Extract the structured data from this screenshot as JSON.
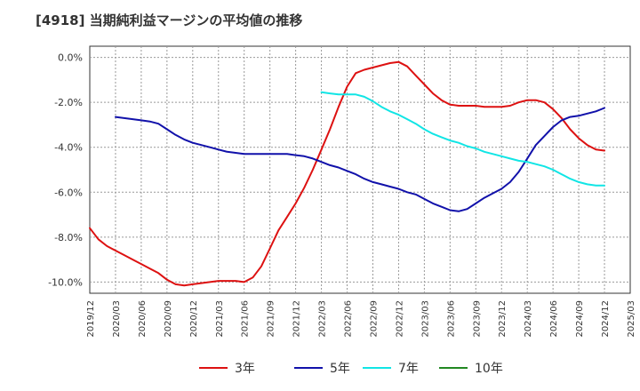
{
  "chart_data": {
    "type": "line",
    "title": "[4918]  当期純利益マージンの平均値の推移",
    "ylim": [
      -10.5,
      0.5
    ],
    "yticks": [
      0,
      -2,
      -4,
      -6,
      -8,
      -10
    ],
    "ytick_labels": [
      "0.0%",
      "-2.0%",
      "-4.0%",
      "-6.0%",
      "-8.0%",
      "-10.0%"
    ],
    "xlim": [
      "2019/12",
      "2025/03"
    ],
    "xtick_labels": [
      "2019/12",
      "2020/03",
      "2020/06",
      "2020/09",
      "2020/12",
      "2021/03",
      "2021/06",
      "2021/09",
      "2021/12",
      "2022/03",
      "2022/06",
      "2022/09",
      "2022/12",
      "2023/03",
      "2023/06",
      "2023/09",
      "2023/12",
      "2024/03",
      "2024/06",
      "2024/09",
      "2024/12",
      "2025/03"
    ],
    "grid": true,
    "legend_position": "bottom",
    "series": [
      {
        "name": "3年",
        "color": "#dd1111",
        "x": [
          "2019/12",
          "2020/01",
          "2020/02",
          "2020/03",
          "2020/04",
          "2020/05",
          "2020/06",
          "2020/07",
          "2020/08",
          "2020/09",
          "2020/10",
          "2020/11",
          "2020/12",
          "2021/01",
          "2021/02",
          "2021/03",
          "2021/04",
          "2021/05",
          "2021/06",
          "2021/07",
          "2021/08",
          "2021/09",
          "2021/10",
          "2021/11",
          "2021/12",
          "2022/01",
          "2022/02",
          "2022/03",
          "2022/04",
          "2022/05",
          "2022/06",
          "2022/07",
          "2022/08",
          "2022/09",
          "2022/10",
          "2022/11",
          "2022/12",
          "2023/01",
          "2023/02",
          "2023/03",
          "2023/04",
          "2023/05",
          "2023/06",
          "2023/07",
          "2023/08",
          "2023/09",
          "2023/10",
          "2023/11",
          "2023/12",
          "2024/01",
          "2024/02",
          "2024/03",
          "2024/04",
          "2024/05",
          "2024/06",
          "2024/07",
          "2024/08",
          "2024/09",
          "2024/10",
          "2024/11",
          "2024/12"
        ],
        "values": [
          -7.6,
          -8.1,
          -8.4,
          -8.6,
          -8.8,
          -9.0,
          -9.2,
          -9.4,
          -9.6,
          -9.9,
          -10.1,
          -10.15,
          -10.1,
          -10.05,
          -10.0,
          -9.95,
          -9.95,
          -9.95,
          -10.0,
          -9.8,
          -9.3,
          -8.5,
          -7.7,
          -7.1,
          -6.5,
          -5.8,
          -5.0,
          -4.1,
          -3.2,
          -2.2,
          -1.3,
          -0.7,
          -0.55,
          -0.45,
          -0.35,
          -0.25,
          -0.2,
          -0.4,
          -0.8,
          -1.2,
          -1.6,
          -1.9,
          -2.1,
          -2.15,
          -2.15,
          -2.15,
          -2.2,
          -2.2,
          -2.2,
          -2.15,
          -2.0,
          -1.9,
          -1.9,
          -2.0,
          -2.3,
          -2.7,
          -3.2,
          -3.6,
          -3.9,
          -4.1,
          -4.15
        ]
      },
      {
        "name": "5年",
        "color": "#1111aa",
        "x": [
          "2020/03",
          "2020/04",
          "2020/05",
          "2020/06",
          "2020/07",
          "2020/08",
          "2020/09",
          "2020/10",
          "2020/11",
          "2020/12",
          "2021/01",
          "2021/02",
          "2021/03",
          "2021/04",
          "2021/05",
          "2021/06",
          "2021/07",
          "2021/08",
          "2021/09",
          "2021/10",
          "2021/11",
          "2021/12",
          "2022/01",
          "2022/02",
          "2022/03",
          "2022/04",
          "2022/05",
          "2022/06",
          "2022/07",
          "2022/08",
          "2022/09",
          "2022/10",
          "2022/11",
          "2022/12",
          "2023/01",
          "2023/02",
          "2023/03",
          "2023/04",
          "2023/05",
          "2023/06",
          "2023/07",
          "2023/08",
          "2023/09",
          "2023/10",
          "2023/11",
          "2023/12",
          "2024/01",
          "2024/02",
          "2024/03",
          "2024/04",
          "2024/05",
          "2024/06",
          "2024/07",
          "2024/08",
          "2024/09",
          "2024/10",
          "2024/11",
          "2024/12"
        ],
        "values": [
          -2.65,
          -2.7,
          -2.75,
          -2.8,
          -2.85,
          -2.95,
          -3.2,
          -3.45,
          -3.65,
          -3.8,
          -3.9,
          -4.0,
          -4.1,
          -4.2,
          -4.25,
          -4.3,
          -4.3,
          -4.3,
          -4.3,
          -4.3,
          -4.3,
          -4.35,
          -4.4,
          -4.5,
          -4.65,
          -4.8,
          -4.9,
          -5.05,
          -5.2,
          -5.4,
          -5.55,
          -5.65,
          -5.75,
          -5.85,
          -6.0,
          -6.1,
          -6.3,
          -6.5,
          -6.65,
          -6.8,
          -6.85,
          -6.75,
          -6.5,
          -6.25,
          -6.05,
          -5.85,
          -5.55,
          -5.1,
          -4.5,
          -3.9,
          -3.5,
          -3.1,
          -2.8,
          -2.65,
          -2.6,
          -2.5,
          -2.4,
          -2.25
        ]
      },
      {
        "name": "7年",
        "color": "#11e5e5",
        "x": [
          "2022/03",
          "2022/04",
          "2022/05",
          "2022/06",
          "2022/07",
          "2022/08",
          "2022/09",
          "2022/10",
          "2022/11",
          "2022/12",
          "2023/01",
          "2023/02",
          "2023/03",
          "2023/04",
          "2023/05",
          "2023/06",
          "2023/07",
          "2023/08",
          "2023/09",
          "2023/10",
          "2023/11",
          "2023/12",
          "2024/01",
          "2024/02",
          "2024/03",
          "2024/04",
          "2024/05",
          "2024/06",
          "2024/07",
          "2024/08",
          "2024/09",
          "2024/10",
          "2024/11",
          "2024/12"
        ],
        "values": [
          -1.55,
          -1.6,
          -1.65,
          -1.65,
          -1.65,
          -1.75,
          -1.95,
          -2.2,
          -2.4,
          -2.55,
          -2.75,
          -2.95,
          -3.2,
          -3.4,
          -3.55,
          -3.7,
          -3.8,
          -3.95,
          -4.05,
          -4.2,
          -4.3,
          -4.4,
          -4.5,
          -4.6,
          -4.65,
          -4.75,
          -4.85,
          -5.0,
          -5.2,
          -5.4,
          -5.55,
          -5.65,
          -5.7,
          -5.7
        ]
      },
      {
        "name": "10年",
        "color": "#228822",
        "x": [],
        "values": []
      }
    ]
  }
}
